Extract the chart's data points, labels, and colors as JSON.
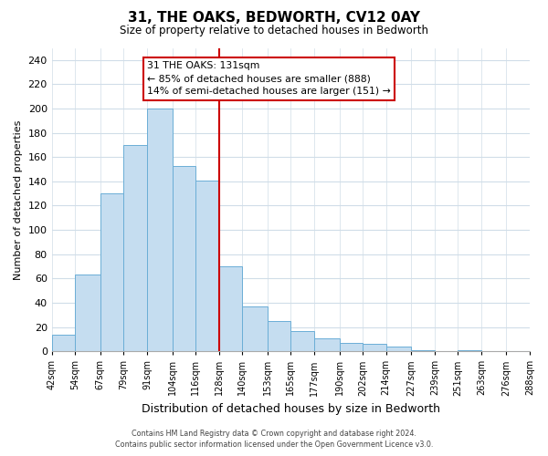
{
  "title": "31, THE OAKS, BEDWORTH, CV12 0AY",
  "subtitle": "Size of property relative to detached houses in Bedworth",
  "xlabel": "Distribution of detached houses by size in Bedworth",
  "ylabel": "Number of detached properties",
  "bar_color": "#c5ddf0",
  "bar_edge_color": "#6baed6",
  "bin_labels": [
    "42sqm",
    "54sqm",
    "67sqm",
    "79sqm",
    "91sqm",
    "104sqm",
    "116sqm",
    "128sqm",
    "140sqm",
    "153sqm",
    "165sqm",
    "177sqm",
    "190sqm",
    "202sqm",
    "214sqm",
    "227sqm",
    "239sqm",
    "251sqm",
    "263sqm",
    "276sqm",
    "288sqm"
  ],
  "bin_edges": [
    42,
    54,
    67,
    79,
    91,
    104,
    116,
    128,
    140,
    153,
    165,
    177,
    190,
    202,
    214,
    227,
    239,
    251,
    263,
    276,
    288
  ],
  "bar_heights": [
    14,
    63,
    130,
    170,
    200,
    153,
    141,
    70,
    37,
    25,
    17,
    11,
    7,
    6,
    4,
    1,
    0,
    1,
    0,
    0
  ],
  "ylim": [
    0,
    250
  ],
  "yticks": [
    0,
    20,
    40,
    60,
    80,
    100,
    120,
    140,
    160,
    180,
    200,
    220,
    240
  ],
  "property_line_x": 128,
  "property_line_color": "#cc0000",
  "annotation_text_line1": "31 THE OAKS: 131sqm",
  "annotation_text_line2": "← 85% of detached houses are smaller (888)",
  "annotation_text_line3": "14% of semi-detached houses are larger (151) →",
  "footer_line1": "Contains HM Land Registry data © Crown copyright and database right 2024.",
  "footer_line2": "Contains public sector information licensed under the Open Government Licence v3.0.",
  "background_color": "#ffffff",
  "grid_color": "#d0dde8"
}
